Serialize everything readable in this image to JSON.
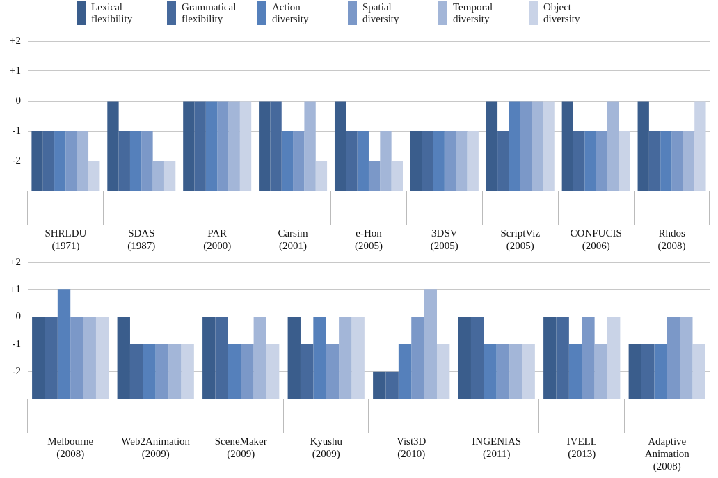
{
  "chart_data": [
    {
      "type": "bar",
      "categories": [
        "SHRLDU\n(1971)",
        "SDAS\n(1987)",
        "PAR\n(2000)",
        "Carsim\n(2001)",
        "e-Hon\n(2005)",
        "3DSV\n(2005)",
        "ScriptViz\n(2005)",
        "CONFUCIS\n(2006)",
        "Rhdos\n(2008)"
      ],
      "series": [
        {
          "name": "Lexical\nflexibility",
          "color": "#3a5d8c",
          "base": [
            -3,
            -3,
            -3,
            -3,
            -3,
            -3,
            -3,
            -3,
            -3
          ],
          "values": [
            2,
            3,
            3,
            3,
            3,
            2,
            3,
            3,
            3
          ]
        },
        {
          "name": "Grammatical\nflexibility",
          "color": "#46699c",
          "base": [
            -3,
            -3,
            -3,
            -3,
            -3,
            -3,
            -3,
            -3,
            -3
          ],
          "values": [
            2,
            2,
            3,
            3,
            2,
            2,
            2,
            2,
            2
          ]
        },
        {
          "name": "Action\ndiversity",
          "color": "#5580bb",
          "base": [
            -3,
            -3,
            -3,
            -3,
            -3,
            -3,
            -3,
            -3,
            -3
          ],
          "values": [
            2,
            2,
            3,
            2,
            2,
            2,
            3,
            2,
            2
          ]
        },
        {
          "name": "Spatial\ndiversity",
          "color": "#7b98c8",
          "base": [
            -3,
            -3,
            -3,
            -3,
            -3,
            -3,
            -3,
            -3,
            -3
          ],
          "values": [
            2,
            2,
            3,
            2,
            1,
            2,
            3,
            2,
            2
          ]
        },
        {
          "name": "Temporal\ndiversity",
          "color": "#a3b6d8",
          "base": [
            -3,
            -3,
            -3,
            -3,
            -3,
            -3,
            -3,
            -3,
            -3
          ],
          "values": [
            2,
            1,
            3,
            3,
            2,
            2,
            3,
            3,
            2
          ]
        },
        {
          "name": "Object\ndiversity",
          "color": "#c9d3e7",
          "base": [
            -3,
            -3,
            -3,
            -3,
            -3,
            -3,
            -3,
            -3,
            -3
          ],
          "values": [
            1,
            1,
            3,
            1,
            1,
            2,
            3,
            2,
            3
          ]
        }
      ],
      "ylim": [
        -3,
        2
      ],
      "yticks": [
        {
          "value": -3,
          "label": null
        },
        -2,
        -1,
        0,
        {
          "value": 1,
          "label": "+1"
        },
        {
          "value": 2,
          "label": "+2"
        }
      ],
      "grid": "y",
      "legend": "top"
    },
    {
      "type": "bar",
      "categories": [
        "Melbourne\n(2008)",
        "Web2Animation\n(2009)",
        "SceneMaker\n(2009)",
        "Kyushu\n(2009)",
        "Vist3D\n(2010)",
        "INGENIAS\n(2011)",
        "IVELL\n(2013)",
        "Adaptive\nAnimation\n(2008)"
      ],
      "series": [
        {
          "color": "#3a5d8c",
          "base": [
            -3,
            -3,
            -3,
            -3,
            -3,
            -3,
            -3,
            -3
          ],
          "values": [
            3,
            3,
            3,
            3,
            1,
            3,
            3,
            2
          ]
        },
        {
          "color": "#46699c",
          "base": [
            -3,
            -3,
            -3,
            -3,
            -3,
            -3,
            -3,
            -3
          ],
          "values": [
            3,
            2,
            3,
            2,
            1,
            3,
            3,
            2
          ]
        },
        {
          "color": "#5580bb",
          "base": [
            -3,
            -3,
            -3,
            -3,
            -3,
            -3,
            -3,
            -3
          ],
          "values": [
            4,
            2,
            2,
            3,
            2,
            2,
            2,
            2
          ]
        },
        {
          "color": "#7b98c8",
          "base": [
            -3,
            -3,
            -3,
            -3,
            -3,
            -3,
            -3,
            -3
          ],
          "values": [
            3,
            2,
            2,
            2,
            3,
            2,
            3,
            3
          ]
        },
        {
          "color": "#a3b6d8",
          "base": [
            -3,
            -3,
            -3,
            -3,
            -3,
            -3,
            -3,
            -3
          ],
          "values": [
            3,
            2,
            3,
            3,
            4,
            2,
            2,
            3
          ]
        },
        {
          "color": "#c9d3e7",
          "base": [
            -3,
            -3,
            -3,
            -3,
            -3,
            -3,
            -3,
            -3
          ],
          "values": [
            3,
            2,
            2,
            3,
            2,
            2,
            3,
            2
          ]
        }
      ],
      "ylim": [
        -3,
        2
      ],
      "yticks": [
        {
          "value": -3,
          "label": null
        },
        -2,
        -1,
        0,
        {
          "value": 1,
          "label": "+1"
        },
        {
          "value": 2,
          "label": "+2"
        }
      ],
      "grid": "y"
    }
  ]
}
